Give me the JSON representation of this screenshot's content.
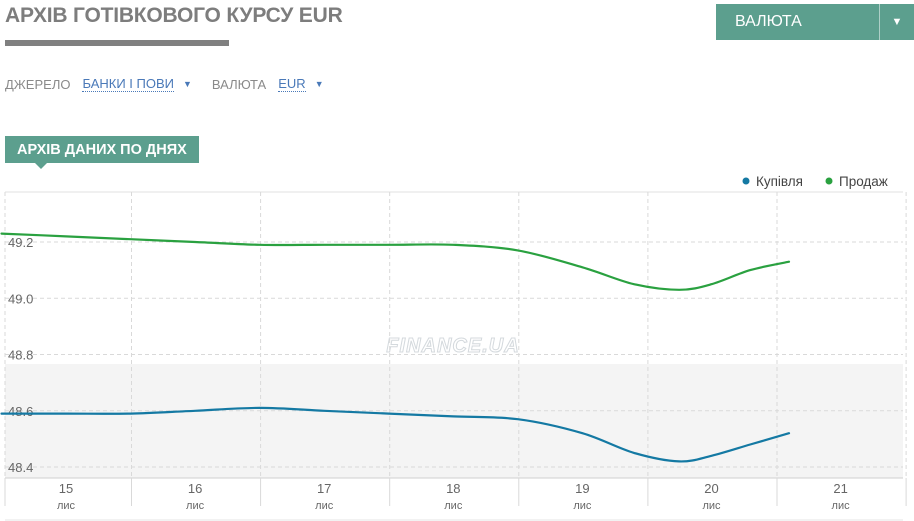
{
  "header": {
    "title": "АРХІВ ГОТІВКОВОГО КУРСУ EUR",
    "currency_button": "ВАЛЮТА",
    "currency_caret": "▼"
  },
  "filters": {
    "source_label": "ДЖЕРЕЛО",
    "source_value": "БАНКИ І ПОВИ",
    "currency_label": "ВАЛЮТА",
    "currency_value": "EUR",
    "caret": "▼"
  },
  "section": {
    "tab_label": "АРХІВ ДАНИХ ПО ДНЯХ"
  },
  "chart_data": {
    "type": "line",
    "watermark": "FINANCE.UA",
    "x_tick_labels": [
      {
        "day": "15",
        "month": "лис"
      },
      {
        "day": "16",
        "month": "лис"
      },
      {
        "day": "17",
        "month": "лис"
      },
      {
        "day": "18",
        "month": "лис"
      },
      {
        "day": "19",
        "month": "лис"
      },
      {
        "day": "20",
        "month": "лис"
      },
      {
        "day": "21",
        "month": "лис"
      }
    ],
    "y_ticks": [
      48.4,
      48.6,
      48.8,
      49.0,
      49.2
    ],
    "y_tick_labels": [
      "48.4",
      "48.6",
      "48.8",
      "49.0",
      "49.2"
    ],
    "ylim": [
      48.36,
      49.35
    ],
    "xlim": [
      14.5,
      21.9
    ],
    "grid": true,
    "legend_position": "top-right",
    "series": [
      {
        "name": "Купівля",
        "color": "#1479a3",
        "points": [
          [
            14.5,
            48.59
          ],
          [
            15.0,
            48.59
          ],
          [
            15.5,
            48.59
          ],
          [
            16.0,
            48.6
          ],
          [
            16.5,
            48.61
          ],
          [
            17.0,
            48.6
          ],
          [
            17.5,
            48.59
          ],
          [
            18.0,
            48.58
          ],
          [
            18.5,
            48.57
          ],
          [
            19.0,
            48.52
          ],
          [
            19.4,
            48.45
          ],
          [
            19.75,
            48.42
          ],
          [
            20.0,
            48.44
          ],
          [
            20.3,
            48.48
          ],
          [
            20.6,
            48.52
          ]
        ]
      },
      {
        "name": "Продаж",
        "color": "#2aa140",
        "points": [
          [
            14.5,
            49.23
          ],
          [
            15.0,
            49.22
          ],
          [
            15.5,
            49.21
          ],
          [
            16.0,
            49.2
          ],
          [
            16.5,
            49.19
          ],
          [
            17.0,
            49.19
          ],
          [
            17.5,
            49.19
          ],
          [
            18.0,
            49.19
          ],
          [
            18.5,
            49.17
          ],
          [
            19.0,
            49.11
          ],
          [
            19.4,
            49.05
          ],
          [
            19.75,
            49.03
          ],
          [
            20.0,
            49.05
          ],
          [
            20.3,
            49.1
          ],
          [
            20.6,
            49.13
          ]
        ]
      }
    ]
  }
}
